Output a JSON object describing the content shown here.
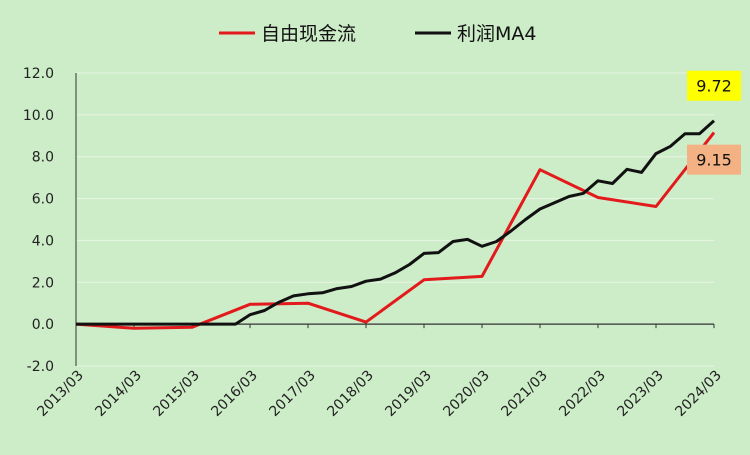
{
  "chart_data": {
    "type": "line",
    "ylim": [
      -2.0,
      12.0
    ],
    "yticks": [
      "12.0",
      "10.0",
      "8.0",
      "6.0",
      "4.0",
      "2.0",
      "0.0",
      "-2.0"
    ],
    "xticks": [
      "2013/03",
      "2014/03",
      "2015/03",
      "2016/03",
      "2017/03",
      "2018/03",
      "2019/03",
      "2020/03",
      "2021/03",
      "2022/03",
      "2023/03",
      "2024/03"
    ],
    "legend_position": "top-center",
    "series": [
      {
        "name": "自由现金流",
        "color": "#e31a1c",
        "x": [
          "2013/03",
          "2014/03",
          "2015/03",
          "2016/03",
          "2017/03",
          "2018/03",
          "2019/03",
          "2020/03",
          "2021/03",
          "2022/03",
          "2023/03",
          "2024/03"
        ],
        "values": [
          0.0,
          -0.2,
          -0.15,
          0.95,
          1.0,
          0.1,
          2.12,
          2.28,
          7.38,
          6.05,
          5.62,
          9.15
        ]
      },
      {
        "name": "利润MA4",
        "color": "#111111",
        "x": [
          "2013/03",
          "2015/12",
          "2016/03",
          "2016/06",
          "2016/09",
          "2016/12",
          "2017/03",
          "2017/06",
          "2017/09",
          "2017/12",
          "2018/03",
          "2018/06",
          "2018/09",
          "2018/12",
          "2019/03",
          "2019/06",
          "2019/09",
          "2019/12",
          "2020/03",
          "2020/06",
          "2020/09",
          "2020/12",
          "2021/03",
          "2021/06",
          "2021/09",
          "2021/12",
          "2022/03",
          "2022/06",
          "2022/09",
          "2022/12",
          "2023/03",
          "2023/06",
          "2023/09",
          "2023/12",
          "2024/03"
        ],
        "values": [
          0.0,
          0.0,
          0.45,
          0.65,
          1.05,
          1.35,
          1.45,
          1.5,
          1.7,
          1.8,
          2.05,
          2.15,
          2.45,
          2.85,
          3.38,
          3.42,
          3.95,
          4.05,
          3.72,
          3.95,
          4.45,
          5.0,
          5.5,
          5.8,
          6.1,
          6.25,
          6.85,
          6.72,
          7.4,
          7.25,
          8.15,
          8.5,
          9.1,
          9.1,
          9.72
        ]
      }
    ],
    "end_labels": [
      {
        "text": "9.72",
        "series": "利润MA4",
        "value": 9.72,
        "bg": "#ffff00"
      },
      {
        "text": "9.15",
        "series": "自由现金流",
        "value": 9.15,
        "bg": "#f4b183"
      }
    ]
  }
}
